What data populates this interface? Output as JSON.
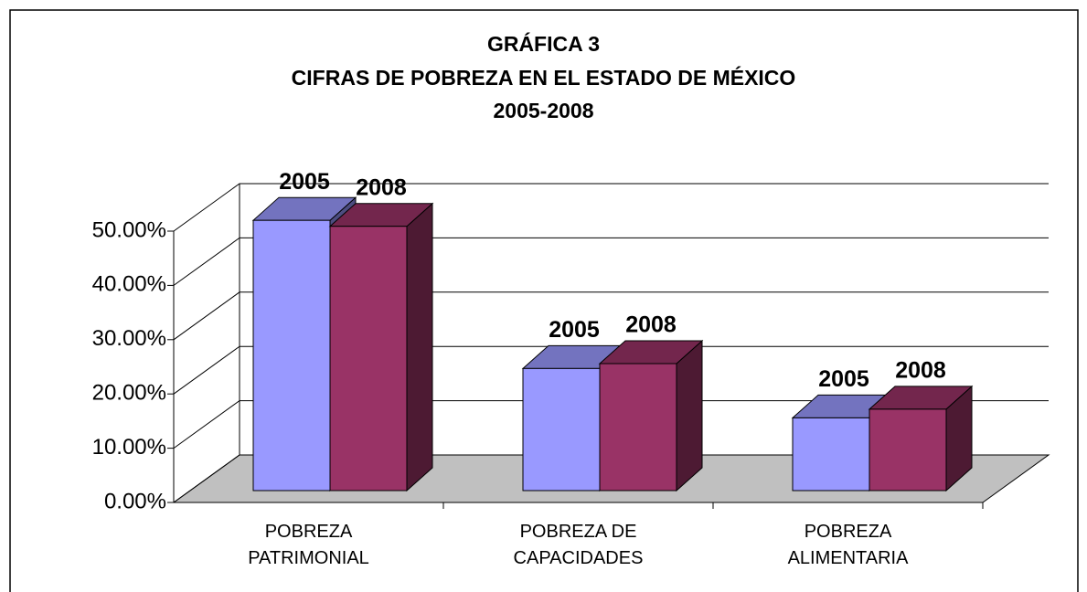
{
  "chart_data": {
    "type": "bar3d",
    "title": "GRÁFICA 3\nCIFRAS DE POBREZA EN EL ESTADO DE MÉXICO\n2005-2008",
    "categories": [
      "POBREZA\nPATRIMONIAL",
      "POBREZA DE\nCAPACIDADES",
      "POBREZA\nALIMENTARIA"
    ],
    "series": [
      {
        "name": "2005",
        "color": "#9999ff",
        "values": [
          49.8,
          22.5,
          13.4
        ]
      },
      {
        "name": "2008",
        "color": "#993366",
        "values": [
          48.7,
          23.4,
          15.0
        ]
      }
    ],
    "ylim": [
      0,
      50
    ],
    "yticks": [
      {
        "value": 0,
        "label": "0.00%"
      },
      {
        "value": 10,
        "label": "10.00%"
      },
      {
        "value": 20,
        "label": "20.00%"
      },
      {
        "value": 30,
        "label": "30.00%"
      },
      {
        "value": 40,
        "label": "40.00%"
      },
      {
        "value": 50,
        "label": "50.00%"
      }
    ],
    "grid": true
  }
}
